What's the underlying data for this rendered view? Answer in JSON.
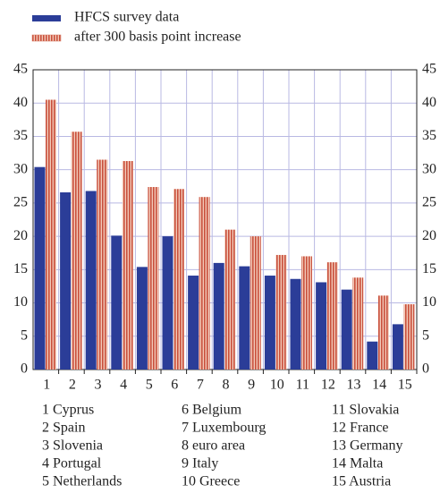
{
  "chart_data": {
    "type": "bar",
    "categories": [
      "1",
      "2",
      "3",
      "4",
      "5",
      "6",
      "7",
      "8",
      "9",
      "10",
      "11",
      "12",
      "13",
      "14",
      "15"
    ],
    "series": [
      {
        "name": "HFCS survey data",
        "color": "#2b3d98",
        "values": [
          30.4,
          26.6,
          26.8,
          20.1,
          15.4,
          20.0,
          14.1,
          16.0,
          15.5,
          14.1,
          13.6,
          13.1,
          12.0,
          4.2,
          6.8
        ]
      },
      {
        "name": "after 300 basis point increase",
        "color": "#d77a66",
        "values": [
          40.5,
          35.7,
          31.5,
          31.3,
          27.4,
          27.1,
          25.9,
          21.0,
          20.0,
          17.2,
          17.0,
          16.1,
          13.8,
          11.1,
          9.8
        ]
      }
    ],
    "ylim": [
      0,
      45
    ],
    "yticks": [
      0,
      5,
      10,
      15,
      20,
      25,
      30,
      35,
      40,
      45
    ],
    "grid": true,
    "country_key": [
      "1 Cyprus",
      "2 Spain",
      "3 Slovenia",
      "4 Portugal",
      "5 Netherlands",
      "6 Belgium",
      "7 Luxembourg",
      "8 euro area",
      "9 Italy",
      "10 Greece",
      "11 Slovakia",
      "12 France",
      "13 Germany",
      "14 Malta",
      "15 Austria"
    ]
  }
}
